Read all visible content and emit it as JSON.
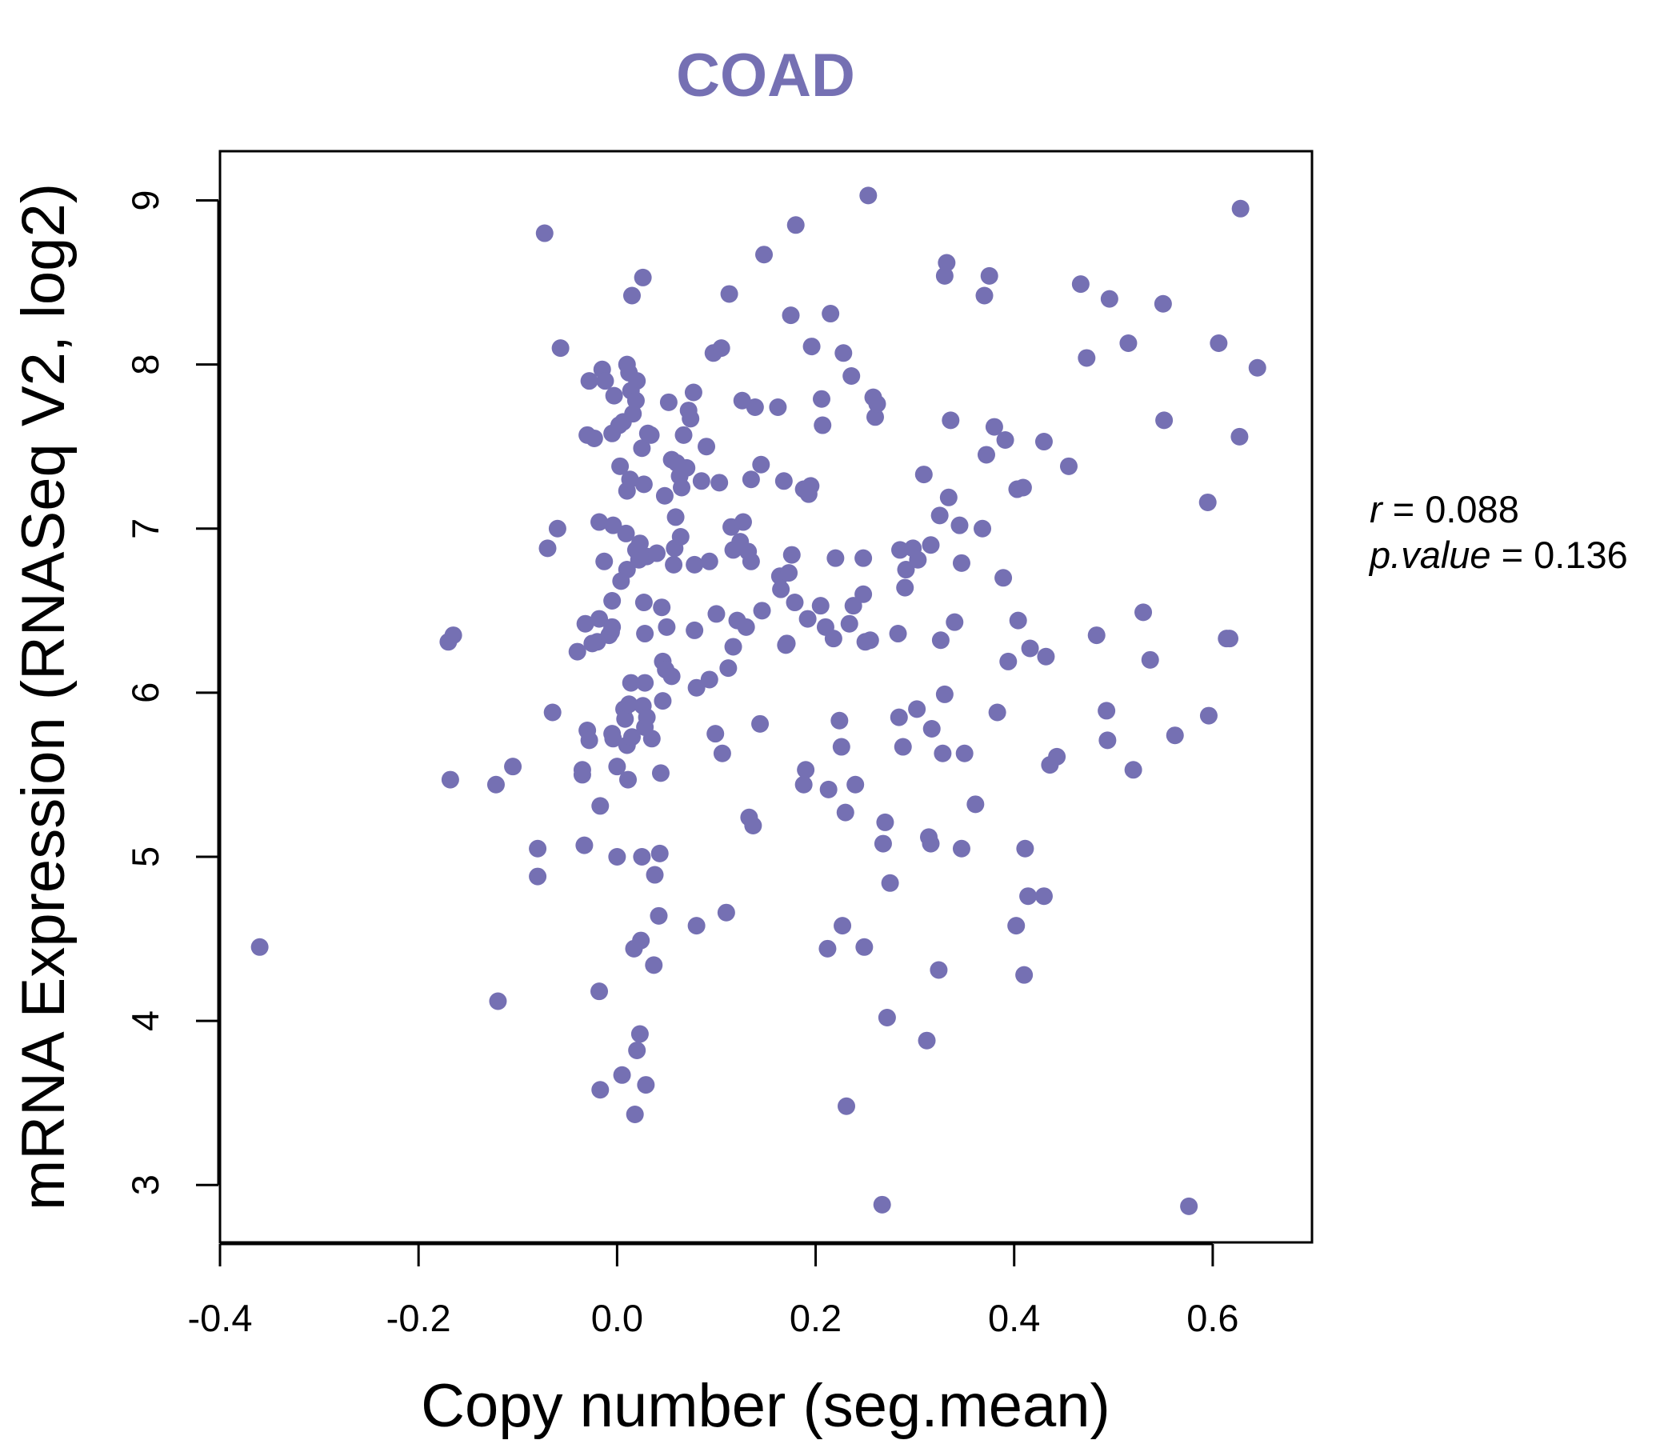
{
  "chart_data": {
    "type": "scatter",
    "title": "COAD",
    "xlabel": "Copy number (seg.mean)",
    "ylabel": "mRNA Expression (RNASeq V2, log2)",
    "xlim": [
      -0.4,
      0.7
    ],
    "ylim": [
      2.65,
      9.3
    ],
    "xticks": [
      "-0.4",
      "-0.2",
      "0.0",
      "0.2",
      "0.4",
      "0.6"
    ],
    "xtick_values": [
      -0.4,
      -0.2,
      0.0,
      0.2,
      0.4,
      0.6
    ],
    "yticks": [
      "3",
      "4",
      "5",
      "6",
      "7",
      "8",
      "9"
    ],
    "ytick_values": [
      3,
      4,
      5,
      6,
      7,
      8,
      9
    ],
    "point_color": "#7570B3",
    "title_color": "#7570B3",
    "stats": {
      "r_label": "r",
      "r_value": "0.088",
      "p_label": "p.value",
      "p_value": "0.136"
    },
    "points": [
      [
        -0.36,
        4.45
      ],
      [
        -0.17,
        6.31
      ],
      [
        -0.165,
        6.35
      ],
      [
        -0.168,
        5.47
      ],
      [
        -0.122,
        5.44
      ],
      [
        -0.12,
        4.12
      ],
      [
        -0.105,
        5.55
      ],
      [
        -0.08,
        5.05
      ],
      [
        -0.08,
        4.88
      ],
      [
        -0.073,
        8.8
      ],
      [
        -0.07,
        6.88
      ],
      [
        -0.065,
        5.88
      ],
      [
        -0.06,
        7.0
      ],
      [
        -0.057,
        8.1
      ],
      [
        -0.04,
        6.25
      ],
      [
        -0.035,
        5.53
      ],
      [
        -0.035,
        5.5
      ],
      [
        -0.033,
        5.07
      ],
      [
        -0.032,
        6.42
      ],
      [
        -0.03,
        5.77
      ],
      [
        -0.028,
        5.71
      ],
      [
        -0.03,
        7.57
      ],
      [
        -0.028,
        7.9
      ],
      [
        -0.025,
        6.3
      ],
      [
        -0.023,
        7.55
      ],
      [
        -0.02,
        6.31
      ],
      [
        -0.018,
        6.45
      ],
      [
        -0.018,
        7.04
      ],
      [
        -0.017,
        3.58
      ],
      [
        -0.018,
        4.18
      ],
      [
        -0.017,
        5.31
      ],
      [
        -0.015,
        7.97
      ],
      [
        -0.013,
        6.8
      ],
      [
        -0.012,
        7.9
      ],
      [
        -0.008,
        6.35
      ],
      [
        -0.006,
        6.37
      ],
      [
        -0.005,
        7.58
      ],
      [
        -0.005,
        6.56
      ],
      [
        -0.005,
        6.4
      ],
      [
        -0.005,
        5.75
      ],
      [
        -0.004,
        5.72
      ],
      [
        -0.004,
        7.02
      ],
      [
        -0.003,
        7.81
      ],
      [
        0.0,
        5.0
      ],
      [
        0.0,
        5.55
      ],
      [
        0.002,
        7.63
      ],
      [
        0.003,
        7.38
      ],
      [
        0.004,
        6.68
      ],
      [
        0.005,
        3.67
      ],
      [
        0.006,
        7.65
      ],
      [
        0.007,
        5.9
      ],
      [
        0.008,
        5.84
      ],
      [
        0.009,
        6.97
      ],
      [
        0.01,
        5.68
      ],
      [
        0.01,
        7.23
      ],
      [
        0.01,
        6.75
      ],
      [
        0.01,
        8.0
      ],
      [
        0.011,
        5.47
      ],
      [
        0.012,
        7.95
      ],
      [
        0.012,
        5.93
      ],
      [
        0.013,
        7.3
      ],
      [
        0.014,
        6.06
      ],
      [
        0.014,
        7.84
      ],
      [
        0.015,
        8.42
      ],
      [
        0.015,
        5.73
      ],
      [
        0.016,
        7.7
      ],
      [
        0.017,
        4.44
      ],
      [
        0.018,
        3.43
      ],
      [
        0.019,
        6.87
      ],
      [
        0.019,
        7.78
      ],
      [
        0.02,
        3.82
      ],
      [
        0.02,
        7.9
      ],
      [
        0.022,
        6.81
      ],
      [
        0.023,
        3.92
      ],
      [
        0.023,
        6.91
      ],
      [
        0.024,
        4.49
      ],
      [
        0.025,
        5.0
      ],
      [
        0.025,
        7.49
      ],
      [
        0.026,
        8.53
      ],
      [
        0.026,
        5.92
      ],
      [
        0.027,
        7.27
      ],
      [
        0.027,
        6.55
      ],
      [
        0.028,
        6.06
      ],
      [
        0.028,
        5.79
      ],
      [
        0.028,
        6.36
      ],
      [
        0.029,
        3.61
      ],
      [
        0.03,
        5.85
      ],
      [
        0.03,
        6.83
      ],
      [
        0.031,
        7.58
      ],
      [
        0.034,
        7.57
      ],
      [
        0.035,
        5.72
      ],
      [
        0.037,
        4.34
      ],
      [
        0.038,
        4.89
      ],
      [
        0.04,
        6.85
      ],
      [
        0.042,
        4.64
      ],
      [
        0.043,
        5.02
      ],
      [
        0.044,
        5.51
      ],
      [
        0.045,
        6.52
      ],
      [
        0.046,
        5.95
      ],
      [
        0.046,
        6.19
      ],
      [
        0.048,
        7.2
      ],
      [
        0.049,
        6.14
      ],
      [
        0.05,
        6.4
      ],
      [
        0.052,
        7.77
      ],
      [
        0.055,
        7.42
      ],
      [
        0.055,
        6.1
      ],
      [
        0.057,
        6.78
      ],
      [
        0.058,
        6.88
      ],
      [
        0.059,
        7.07
      ],
      [
        0.06,
        7.4
      ],
      [
        0.063,
        7.32
      ],
      [
        0.064,
        6.95
      ],
      [
        0.065,
        7.25
      ],
      [
        0.067,
        7.57
      ],
      [
        0.07,
        7.37
      ],
      [
        0.072,
        7.72
      ],
      [
        0.074,
        7.67
      ],
      [
        0.077,
        7.83
      ],
      [
        0.078,
        6.38
      ],
      [
        0.078,
        6.78
      ],
      [
        0.08,
        4.58
      ],
      [
        0.08,
        6.03
      ],
      [
        0.085,
        7.29
      ],
      [
        0.09,
        7.5
      ],
      [
        0.093,
        6.08
      ],
      [
        0.093,
        6.8
      ],
      [
        0.097,
        8.07
      ],
      [
        0.099,
        5.75
      ],
      [
        0.1,
        6.48
      ],
      [
        0.103,
        7.28
      ],
      [
        0.105,
        8.1
      ],
      [
        0.106,
        5.63
      ],
      [
        0.11,
        4.66
      ],
      [
        0.112,
        6.15
      ],
      [
        0.113,
        8.43
      ],
      [
        0.115,
        7.01
      ],
      [
        0.117,
        6.87
      ],
      [
        0.117,
        6.28
      ],
      [
        0.121,
        6.44
      ],
      [
        0.124,
        6.92
      ],
      [
        0.126,
        7.78
      ],
      [
        0.127,
        7.04
      ],
      [
        0.13,
        6.4
      ],
      [
        0.132,
        6.86
      ],
      [
        0.133,
        5.24
      ],
      [
        0.135,
        7.3
      ],
      [
        0.135,
        6.8
      ],
      [
        0.137,
        5.19
      ],
      [
        0.139,
        7.74
      ],
      [
        0.144,
        5.81
      ],
      [
        0.145,
        7.39
      ],
      [
        0.146,
        6.5
      ],
      [
        0.148,
        8.67
      ],
      [
        0.162,
        7.74
      ],
      [
        0.164,
        6.71
      ],
      [
        0.165,
        6.63
      ],
      [
        0.168,
        7.29
      ],
      [
        0.17,
        6.29
      ],
      [
        0.171,
        6.3
      ],
      [
        0.173,
        6.73
      ],
      [
        0.175,
        8.3
      ],
      [
        0.176,
        6.84
      ],
      [
        0.179,
        6.55
      ],
      [
        0.18,
        8.85
      ],
      [
        0.188,
        5.44
      ],
      [
        0.188,
        7.24
      ],
      [
        0.19,
        5.53
      ],
      [
        0.192,
        6.45
      ],
      [
        0.193,
        7.21
      ],
      [
        0.195,
        7.26
      ],
      [
        0.196,
        8.11
      ],
      [
        0.205,
        6.53
      ],
      [
        0.206,
        7.79
      ],
      [
        0.207,
        7.63
      ],
      [
        0.21,
        6.4
      ],
      [
        0.212,
        4.44
      ],
      [
        0.213,
        5.41
      ],
      [
        0.215,
        8.31
      ],
      [
        0.218,
        6.33
      ],
      [
        0.22,
        6.82
      ],
      [
        0.224,
        5.83
      ],
      [
        0.226,
        5.67
      ],
      [
        0.227,
        4.58
      ],
      [
        0.228,
        8.07
      ],
      [
        0.23,
        5.27
      ],
      [
        0.231,
        3.48
      ],
      [
        0.234,
        6.42
      ],
      [
        0.236,
        7.93
      ],
      [
        0.238,
        6.53
      ],
      [
        0.24,
        5.44
      ],
      [
        0.248,
        6.6
      ],
      [
        0.248,
        6.82
      ],
      [
        0.249,
        4.45
      ],
      [
        0.25,
        6.31
      ],
      [
        0.253,
        9.03
      ],
      [
        0.255,
        6.32
      ],
      [
        0.258,
        7.8
      ],
      [
        0.26,
        7.68
      ],
      [
        0.262,
        7.76
      ],
      [
        0.267,
        2.88
      ],
      [
        0.268,
        5.08
      ],
      [
        0.27,
        5.21
      ],
      [
        0.272,
        4.02
      ],
      [
        0.275,
        4.84
      ],
      [
        0.283,
        6.36
      ],
      [
        0.284,
        5.85
      ],
      [
        0.285,
        6.87
      ],
      [
        0.288,
        5.67
      ],
      [
        0.29,
        6.64
      ],
      [
        0.291,
        6.75
      ],
      [
        0.298,
        6.88
      ],
      [
        0.302,
        5.9
      ],
      [
        0.303,
        6.81
      ],
      [
        0.309,
        7.33
      ],
      [
        0.312,
        3.88
      ],
      [
        0.314,
        5.12
      ],
      [
        0.316,
        6.9
      ],
      [
        0.316,
        5.08
      ],
      [
        0.317,
        5.78
      ],
      [
        0.324,
        4.31
      ],
      [
        0.325,
        7.08
      ],
      [
        0.326,
        6.32
      ],
      [
        0.328,
        5.63
      ],
      [
        0.33,
        5.99
      ],
      [
        0.33,
        8.54
      ],
      [
        0.332,
        8.62
      ],
      [
        0.334,
        7.19
      ],
      [
        0.336,
        7.66
      ],
      [
        0.34,
        6.43
      ],
      [
        0.345,
        7.02
      ],
      [
        0.347,
        6.79
      ],
      [
        0.347,
        5.05
      ],
      [
        0.35,
        5.63
      ],
      [
        0.361,
        5.32
      ],
      [
        0.368,
        7.0
      ],
      [
        0.37,
        8.42
      ],
      [
        0.372,
        7.45
      ],
      [
        0.375,
        8.54
      ],
      [
        0.38,
        7.62
      ],
      [
        0.383,
        5.88
      ],
      [
        0.389,
        6.7
      ],
      [
        0.391,
        7.54
      ],
      [
        0.394,
        6.19
      ],
      [
        0.402,
        4.58
      ],
      [
        0.403,
        7.24
      ],
      [
        0.404,
        6.44
      ],
      [
        0.409,
        7.25
      ],
      [
        0.41,
        4.28
      ],
      [
        0.411,
        5.05
      ],
      [
        0.414,
        4.76
      ],
      [
        0.416,
        6.27
      ],
      [
        0.43,
        4.76
      ],
      [
        0.43,
        7.53
      ],
      [
        0.432,
        6.22
      ],
      [
        0.436,
        5.56
      ],
      [
        0.443,
        5.61
      ],
      [
        0.455,
        7.38
      ],
      [
        0.467,
        8.49
      ],
      [
        0.473,
        8.04
      ],
      [
        0.483,
        6.35
      ],
      [
        0.493,
        5.89
      ],
      [
        0.494,
        5.71
      ],
      [
        0.496,
        8.4
      ],
      [
        0.515,
        8.13
      ],
      [
        0.52,
        5.53
      ],
      [
        0.53,
        6.49
      ],
      [
        0.537,
        6.2
      ],
      [
        0.55,
        8.37
      ],
      [
        0.551,
        7.66
      ],
      [
        0.562,
        5.74
      ],
      [
        0.576,
        2.87
      ],
      [
        0.595,
        7.16
      ],
      [
        0.596,
        5.86
      ],
      [
        0.606,
        8.13
      ],
      [
        0.614,
        6.33
      ],
      [
        0.617,
        6.33
      ],
      [
        0.627,
        7.56
      ],
      [
        0.628,
        8.95
      ],
      [
        0.645,
        7.98
      ]
    ]
  }
}
